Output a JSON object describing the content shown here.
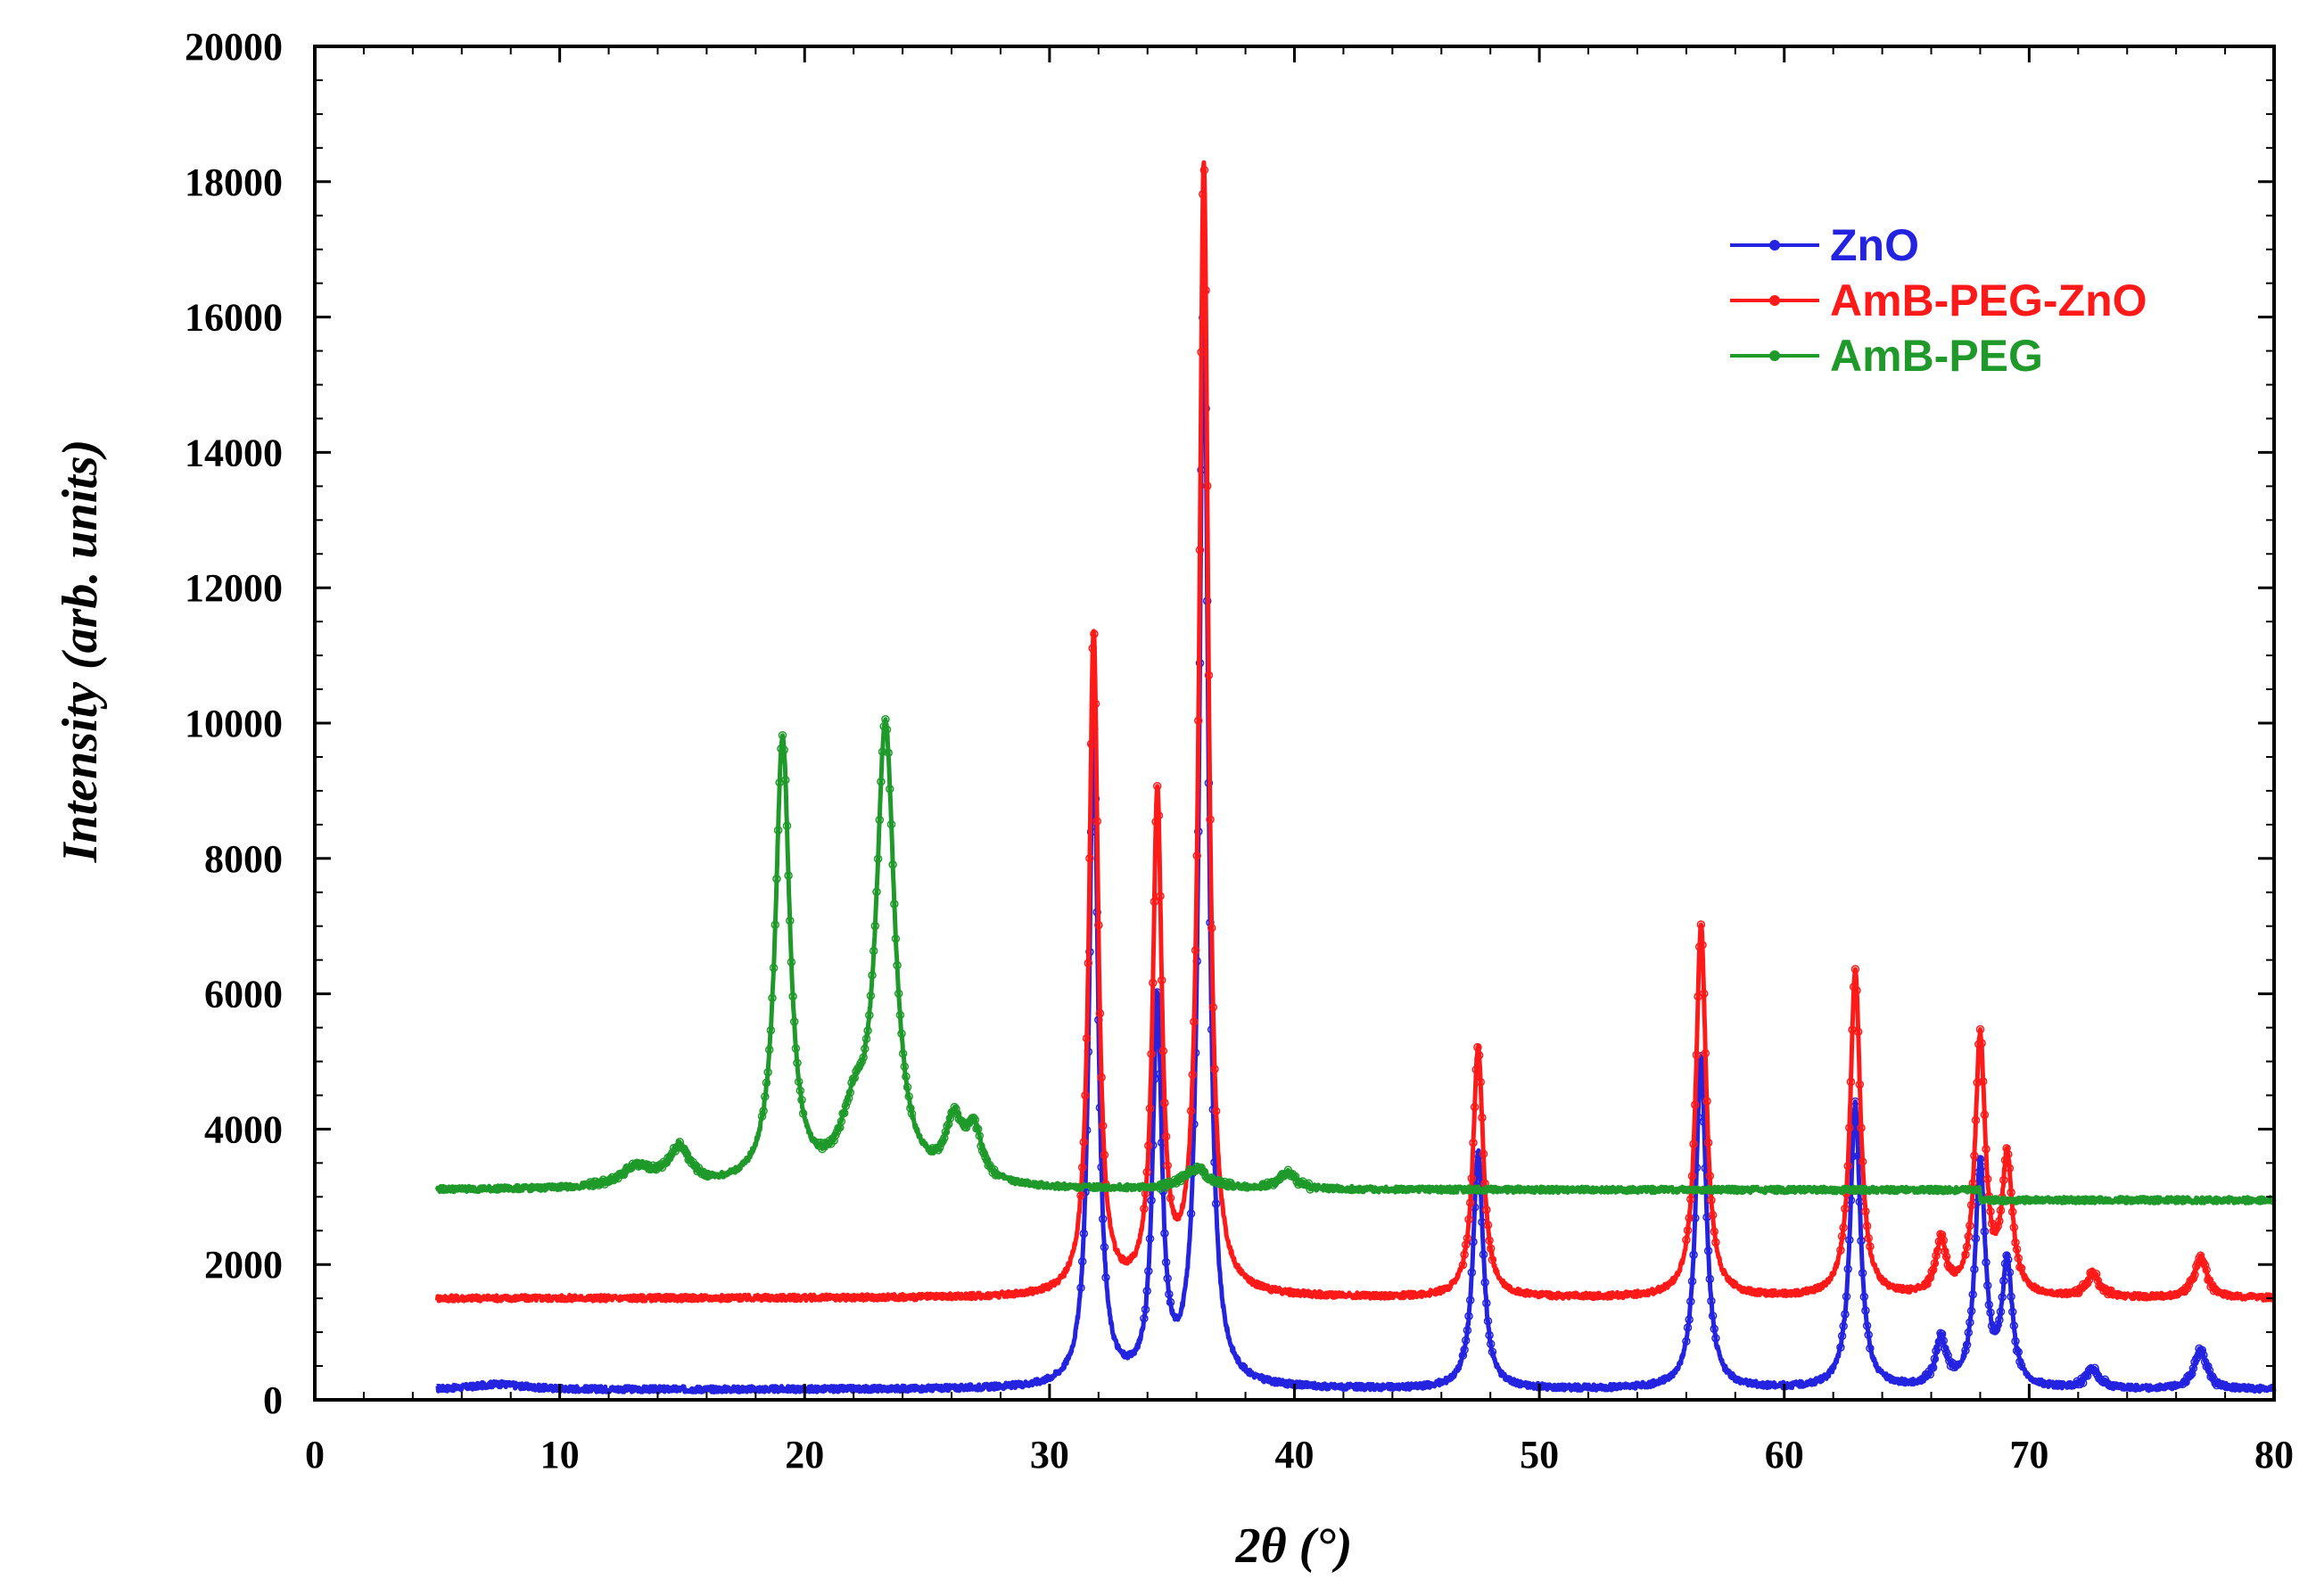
{
  "chart_data": {
    "type": "line",
    "xlabel": "2θ (°)",
    "ylabel": "Intensity (arb. units)",
    "xlim": [
      0,
      80
    ],
    "ylim": [
      0,
      20000
    ],
    "x_ticks": [
      0,
      10,
      20,
      30,
      40,
      50,
      60,
      70,
      80
    ],
    "y_ticks": [
      0,
      2000,
      4000,
      6000,
      8000,
      10000,
      12000,
      14000,
      16000,
      18000,
      20000
    ],
    "grid": false,
    "legend_position": "top-right",
    "series": [
      {
        "name": "ZnO",
        "color": "#2323e0",
        "baseline": 150,
        "x_range": [
          5,
          80
        ],
        "peaks": [
          [
            7.5,
            80,
            1.2
          ],
          [
            31.8,
            9800,
            0.22
          ],
          [
            34.4,
            5600,
            0.22
          ],
          [
            36.3,
            16300,
            0.22
          ],
          [
            47.5,
            3500,
            0.25
          ],
          [
            56.6,
            4900,
            0.25
          ],
          [
            62.9,
            4200,
            0.25
          ],
          [
            66.4,
            700,
            0.25
          ],
          [
            68.0,
            3300,
            0.25
          ],
          [
            69.1,
            1800,
            0.25
          ],
          [
            72.6,
            300,
            0.3
          ],
          [
            77.0,
            600,
            0.3
          ]
        ]
      },
      {
        "name": "AmB-PEG-ZnO",
        "color": "#ff1a1a",
        "baseline": 1500,
        "x_range": [
          5,
          80
        ],
        "peaks": [
          [
            31.8,
            9800,
            0.22
          ],
          [
            34.4,
            7300,
            0.22
          ],
          [
            36.3,
            16700,
            0.22
          ],
          [
            47.5,
            3700,
            0.25
          ],
          [
            56.6,
            5500,
            0.25
          ],
          [
            62.9,
            4800,
            0.25
          ],
          [
            66.4,
            800,
            0.25
          ],
          [
            68.0,
            3800,
            0.25
          ],
          [
            69.1,
            2000,
            0.25
          ],
          [
            72.6,
            350,
            0.3
          ],
          [
            77.0,
            600,
            0.3
          ]
        ]
      },
      {
        "name": "AmB-PEG",
        "color": "#1f9a2a",
        "baseline": 3100,
        "x_range": [
          5,
          80
        ],
        "peaks": [
          [
            13.2,
            300,
            0.8
          ],
          [
            14.9,
            550,
            0.5
          ],
          [
            19.1,
            6600,
            0.35
          ],
          [
            22.0,
            800,
            0.6
          ],
          [
            23.3,
            6700,
            0.45
          ],
          [
            26.1,
            850,
            0.4
          ],
          [
            26.9,
            750,
            0.4
          ],
          [
            36.0,
            300,
            0.6
          ],
          [
            39.7,
            250,
            0.4
          ]
        ]
      }
    ]
  },
  "legend": {
    "items": [
      {
        "label": "ZnO",
        "color": "#2323e0"
      },
      {
        "label": "AmB-PEG-ZnO",
        "color": "#ff1a1a"
      },
      {
        "label": "AmB-PEG",
        "color": "#1f9a2a"
      }
    ]
  }
}
